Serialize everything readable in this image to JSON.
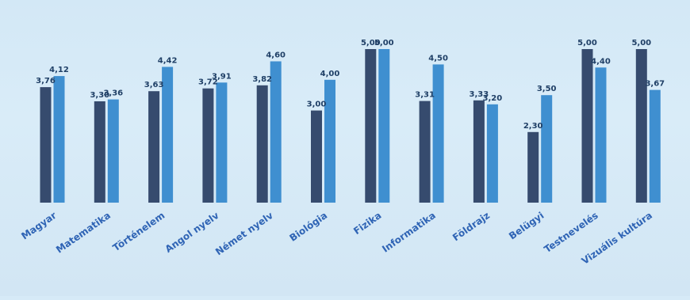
{
  "chart_data": {
    "type": "bar",
    "categories": [
      "Magyar",
      "Matematika",
      "Történelem",
      "Angol nyelv",
      "Német nyelv",
      "Biológia",
      "Fizika",
      "Informatika",
      "Földrajz",
      "Belügyi",
      "Testnevelés",
      "Vizuális kultúra"
    ],
    "series": [
      {
        "values": [
          3.76,
          3.3,
          3.63,
          3.72,
          3.82,
          3.0,
          5.0,
          3.31,
          3.33,
          2.3,
          5.0,
          5.0
        ],
        "labels": [
          "3,76",
          "3,30",
          "3,63",
          "3,72",
          "3,82",
          "3,00",
          "5,00",
          "3,31",
          "3,33",
          "2,30",
          "5,00",
          "5,00"
        ],
        "color": "#364b6e"
      },
      {
        "values": [
          4.12,
          3.36,
          4.42,
          3.91,
          4.6,
          4.0,
          5.0,
          4.5,
          3.2,
          3.5,
          4.4,
          3.67
        ],
        "labels": [
          "4,12",
          "3,36",
          "4,42",
          "3,91",
          "4,60",
          "4,00",
          "5,00",
          "4,50",
          "3,20",
          "3,50",
          "4,40",
          "3,67"
        ],
        "color": "#3f8fd0"
      }
    ],
    "title": "",
    "xlabel": "",
    "ylabel": "",
    "ylim": [
      0,
      5
    ],
    "grid": false,
    "legend": "none"
  }
}
